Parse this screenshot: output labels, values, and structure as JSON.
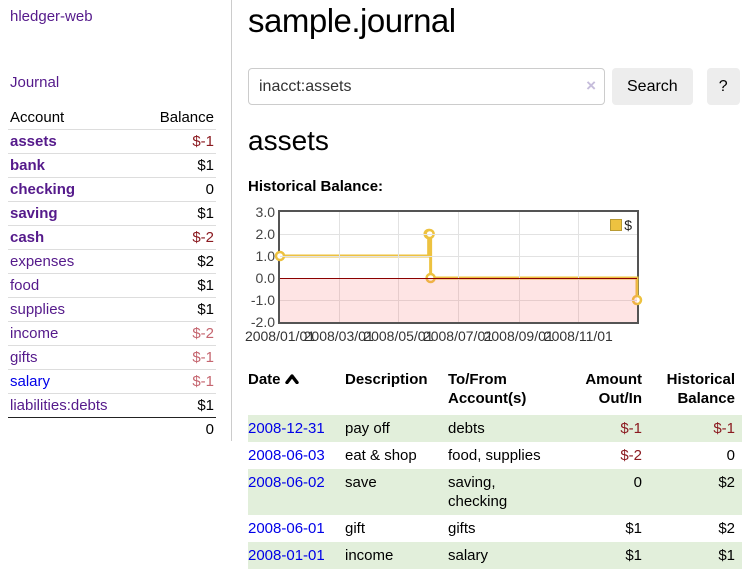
{
  "sidebar": {
    "brand": "hledger-web",
    "journal_label": "Journal",
    "accounts_table": {
      "account_header": "Account",
      "balance_header": "Balance",
      "rows": [
        {
          "name": "assets",
          "balance": "$-1"
        },
        {
          "name": "bank",
          "balance": "$1"
        },
        {
          "name": "checking",
          "balance": "0"
        },
        {
          "name": "saving",
          "balance": "$1"
        },
        {
          "name": "cash",
          "balance": "$-2"
        },
        {
          "name": "expenses",
          "balance": "$2"
        },
        {
          "name": "food",
          "balance": "$1"
        },
        {
          "name": "supplies",
          "balance": "$1"
        },
        {
          "name": "income",
          "balance": "$-2"
        },
        {
          "name": "gifts",
          "balance": "$-1"
        },
        {
          "name": "salary",
          "balance": "$-1"
        },
        {
          "name": "liabilities:debts",
          "balance": "$1"
        }
      ],
      "total": "0"
    }
  },
  "main": {
    "title": "sample.journal",
    "search": {
      "value": "inacct:assets",
      "clear_icon": "×",
      "button_label": "Search",
      "help_label": "?"
    },
    "account_heading": "assets",
    "chart_heading": "Historical Balance:"
  },
  "chart_data": {
    "type": "line",
    "title": "Historical Balance",
    "step": true,
    "series": [
      {
        "name": "$",
        "points": [
          [
            "2008/01/01",
            1
          ],
          [
            "2008/06/01",
            2
          ],
          [
            "2008/06/02",
            2
          ],
          [
            "2008/06/03",
            0
          ],
          [
            "2008/12/31",
            -1
          ]
        ]
      }
    ],
    "xlim": [
      "2008/01/01",
      "2008/12/31"
    ],
    "ylim": [
      -2,
      3
    ],
    "yticks": [
      3.0,
      2.0,
      1.0,
      0.0,
      -1.0,
      -2.0
    ],
    "xticks": [
      "2008/01/01",
      "2008/03/01",
      "2008/05/01",
      "2008/07/01",
      "2008/09/01",
      "2008/11/01"
    ],
    "grid": true,
    "legend_position": "top-right",
    "line_color": "#edc240",
    "marker_fill": "#ffffff",
    "negative_region_fill": "#fbdcdc",
    "zero_line_color": "#8b0000"
  },
  "register": {
    "headers": {
      "date": "Date",
      "description": "Description",
      "account": "To/From Account(s)",
      "amount": "Amount Out/In",
      "balance": "Historical Balance"
    },
    "rows": [
      {
        "date": "2008-12-31",
        "description": "pay off",
        "account": "debts",
        "amount": "$-1",
        "balance": "$-1"
      },
      {
        "date": "2008-06-03",
        "description": "eat & shop",
        "account": "food, supplies",
        "amount": "$-2",
        "balance": "0"
      },
      {
        "date": "2008-06-02",
        "description": "save",
        "account": "saving, checking",
        "amount": "0",
        "balance": "$2"
      },
      {
        "date": "2008-06-01",
        "description": "gift",
        "account": "gifts",
        "amount": "$1",
        "balance": "$2"
      },
      {
        "date": "2008-01-01",
        "description": "income",
        "account": "salary",
        "amount": "$1",
        "balance": "$1"
      }
    ]
  },
  "colors": {
    "link_visited_purple": "#551a8b",
    "link_blue": "#0000e8",
    "negative_strong": "#8b1a20",
    "negative_weak": "#c5656f",
    "row_stripe_green": "#e2efdb",
    "chart_line": "#edc240"
  }
}
